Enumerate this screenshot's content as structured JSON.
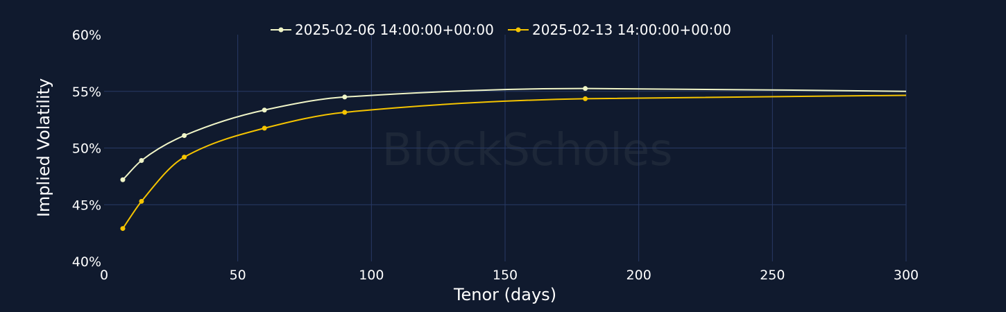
{
  "chart_data": {
    "type": "line",
    "xlabel": "Tenor (days)",
    "ylabel": "Implied Volatility",
    "xlim": [
      0,
      300
    ],
    "ylim": [
      40,
      60
    ],
    "xticks": [
      0,
      50,
      100,
      150,
      200,
      250,
      300
    ],
    "yticks": [
      40,
      45,
      50,
      55,
      60
    ],
    "ytick_labels": [
      "40%",
      "45%",
      "50%",
      "55%",
      "60%"
    ],
    "grid": true,
    "legend_position": "top-center",
    "watermark": "BlockScholes",
    "series": [
      {
        "name": "2025-02-06 14:00:00+00:00",
        "color": "#f0f5c8",
        "x": [
          7,
          14,
          30,
          60,
          90,
          180,
          300
        ],
        "y": [
          47.2,
          48.9,
          51.1,
          53.35,
          54.5,
          55.25,
          55.0
        ],
        "marker_x": [
          7,
          14,
          30,
          60,
          90,
          180
        ]
      },
      {
        "name": "2025-02-13 14:00:00+00:00",
        "color": "#f5c400",
        "x": [
          7,
          14,
          30,
          60,
          90,
          180,
          300
        ],
        "y": [
          42.9,
          45.3,
          49.2,
          51.75,
          53.15,
          54.35,
          54.65
        ],
        "marker_x": [
          7,
          14,
          30,
          60,
          90,
          180
        ]
      }
    ]
  }
}
